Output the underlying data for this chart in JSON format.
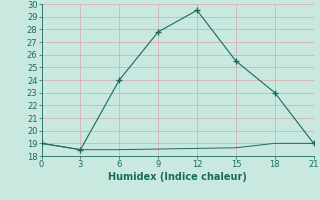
{
  "line1_x": [
    0,
    3,
    6,
    9,
    12,
    15,
    18,
    21
  ],
  "line1_y": [
    19,
    18.5,
    24,
    27.8,
    29.5,
    25.5,
    23,
    19
  ],
  "line2_x": [
    0,
    3,
    6,
    9,
    12,
    15,
    18,
    21
  ],
  "line2_y": [
    19,
    18.5,
    18.5,
    18.55,
    18.6,
    18.65,
    19,
    19
  ],
  "line_color": "#1a6b5e",
  "bg_color": "#c8e8e0",
  "grid_major_color": "#e8c8c8",
  "grid_minor_color": "#d8e8e0",
  "xlabel": "Humidex (Indice chaleur)",
  "xlim": [
    0,
    21
  ],
  "ylim": [
    18,
    30
  ],
  "xticks": [
    0,
    3,
    6,
    9,
    12,
    15,
    18,
    21
  ],
  "yticks": [
    18,
    19,
    20,
    21,
    22,
    23,
    24,
    25,
    26,
    27,
    28,
    29,
    30
  ]
}
